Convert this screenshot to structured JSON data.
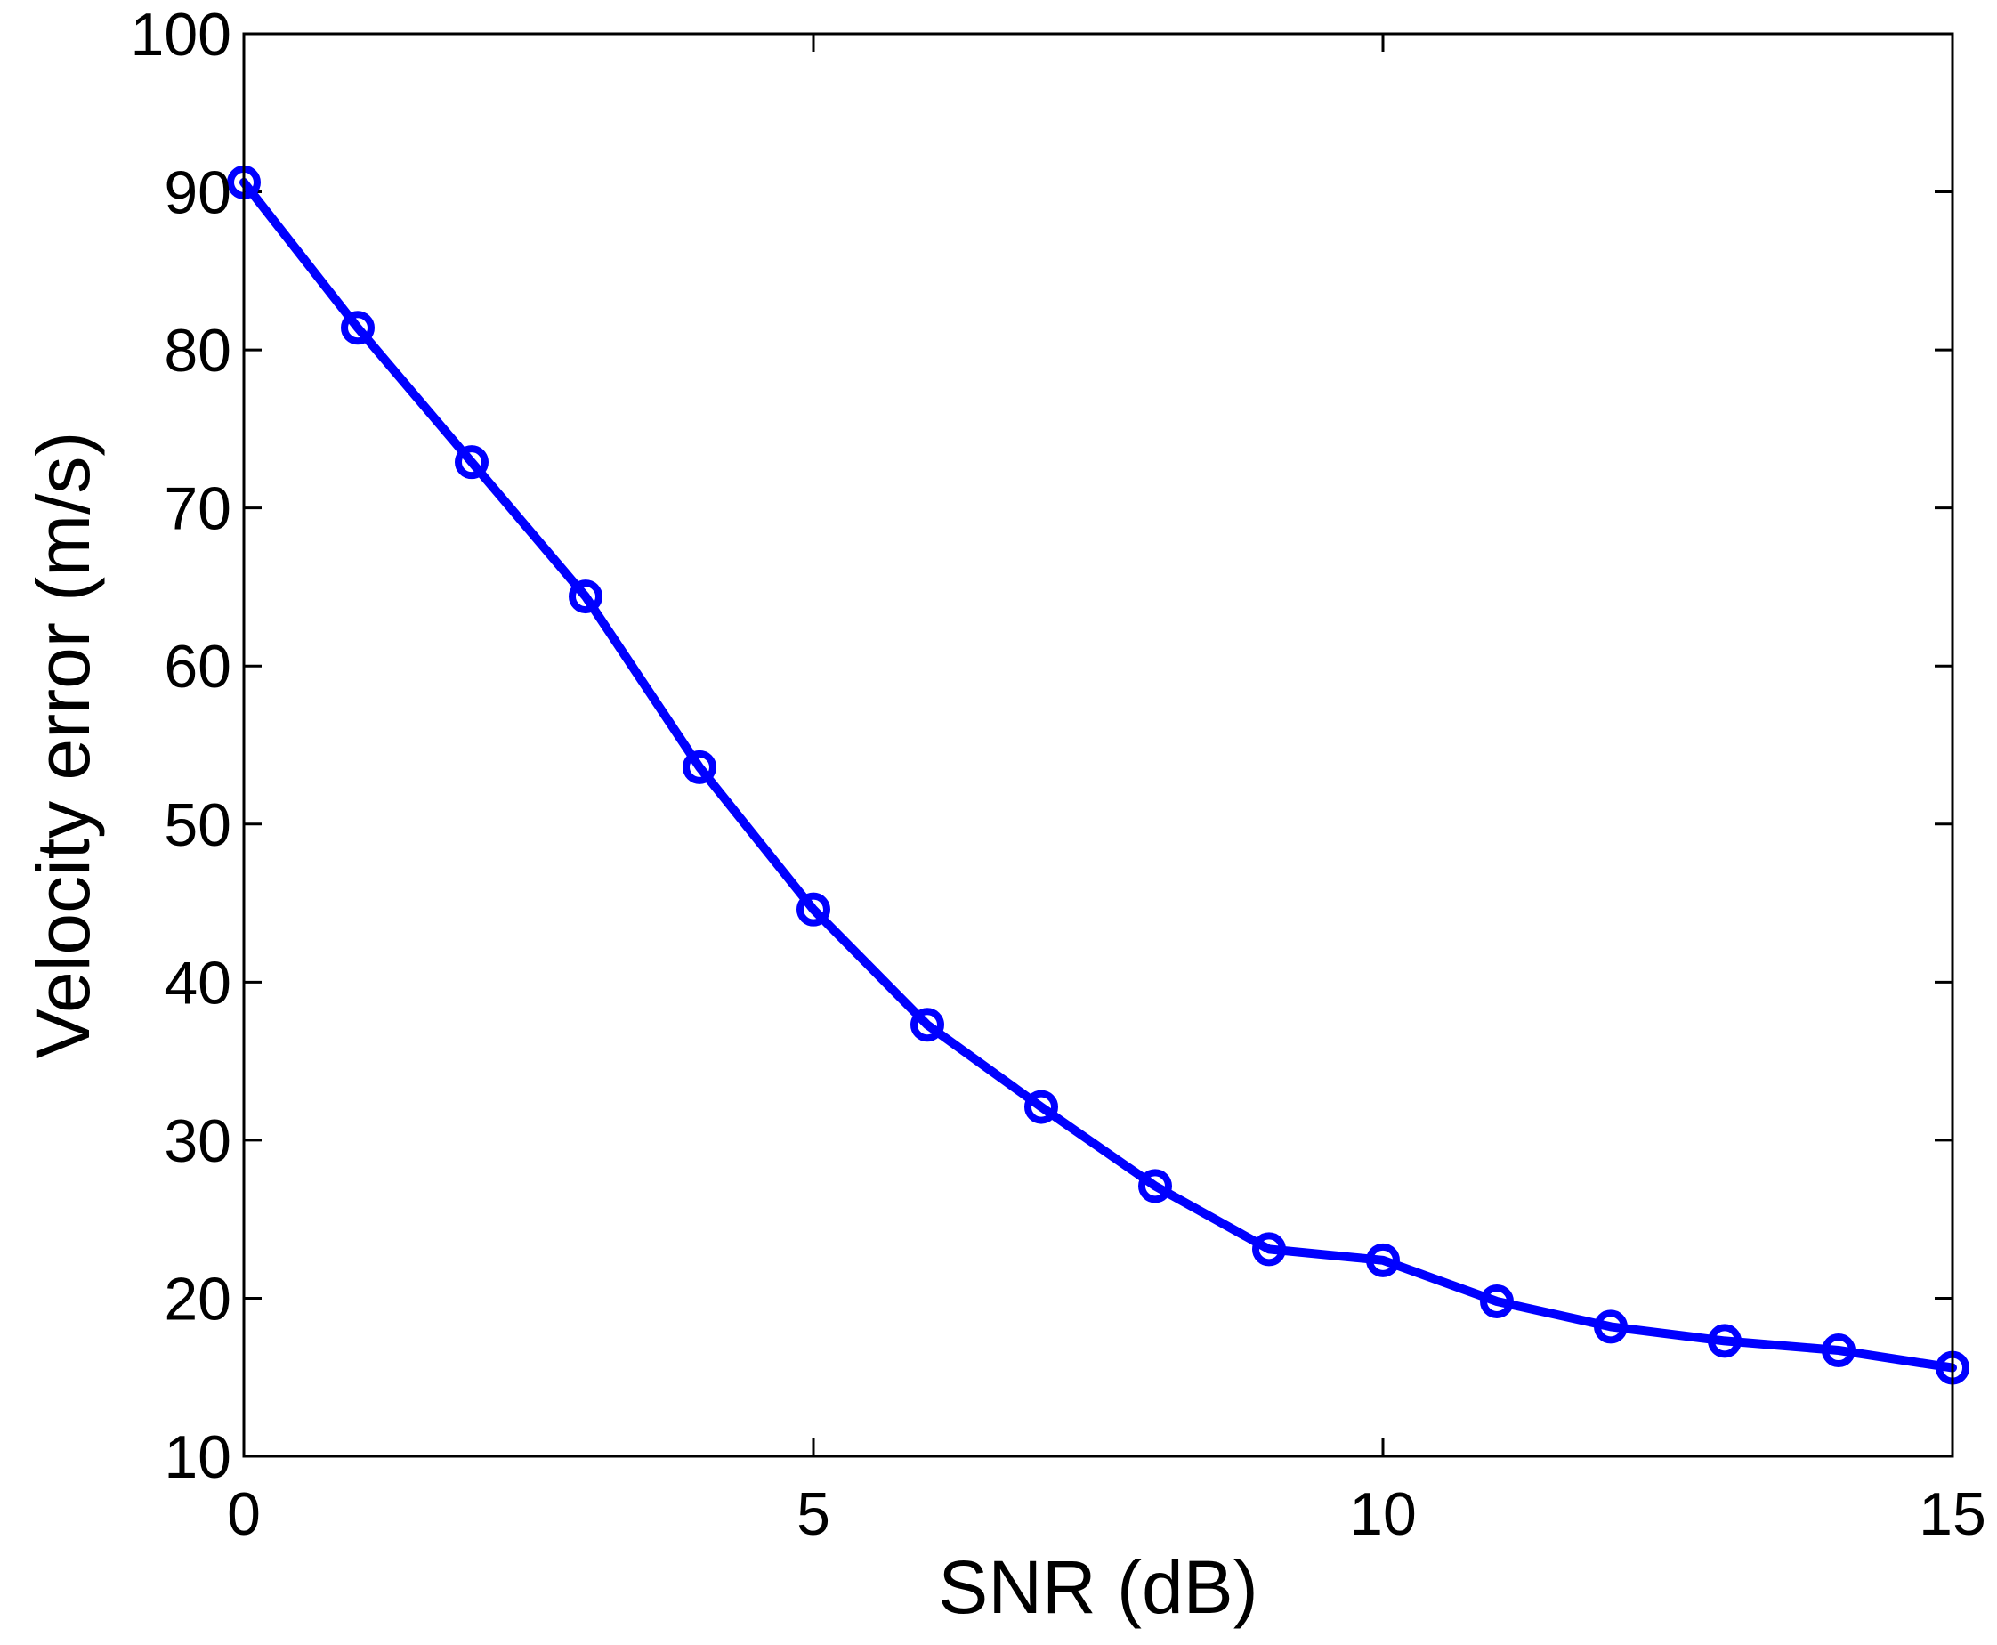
{
  "chart_data": {
    "type": "line",
    "title": "",
    "xlabel": "SNR (dB)",
    "ylabel": "Velocity error (m/s)",
    "xlim": [
      0,
      15
    ],
    "ylim": [
      10,
      100
    ],
    "xticks": [
      0,
      5,
      10,
      15
    ],
    "yticks": [
      10,
      20,
      30,
      40,
      50,
      60,
      70,
      80,
      90,
      100
    ],
    "grid": false,
    "legend": "none",
    "series": [
      {
        "color": "#0000ff",
        "marker": "circle",
        "x": [
          0,
          1,
          2,
          3,
          4,
          5,
          6,
          7,
          8,
          9,
          10,
          11,
          12,
          13,
          14,
          15
        ],
        "y": [
          90.6,
          81.4,
          72.9,
          64.4,
          53.6,
          44.6,
          37.3,
          32.1,
          27.1,
          23.1,
          22.4,
          19.8,
          18.2,
          17.3,
          16.7,
          15.6
        ]
      }
    ]
  }
}
